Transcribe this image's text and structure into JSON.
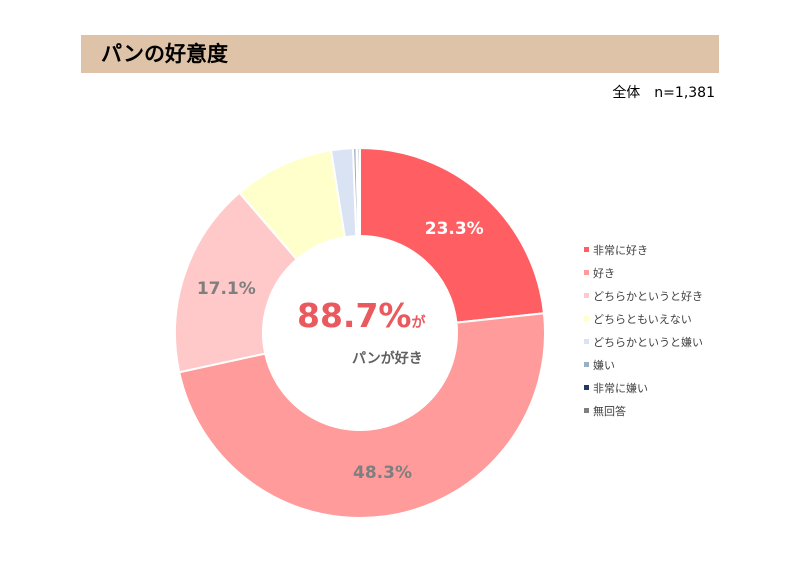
{
  "title": "パンの好意度",
  "sample_size": "全体　n=1,381",
  "center": {
    "big": "88.7%",
    "suffix": "が",
    "sub": "パンが好き"
  },
  "colors": {
    "title_bar": "#dfc3a8",
    "center_text": "#e9595d"
  },
  "chart_data": {
    "type": "pie",
    "donut": true,
    "categories": [
      "非常に好き",
      "好き",
      "どちらかというと好き",
      "どちらともいえない",
      "どちらかというと嫌い",
      "嫌い",
      "非常に嫌い",
      "無回答"
    ],
    "values": [
      23.3,
      48.3,
      17.1,
      8.8,
      1.9,
      0.3,
      0.1,
      0.2
    ],
    "labels": [
      "23.3%",
      "48.3%",
      "17.1%",
      "",
      "",
      "",
      "",
      ""
    ],
    "colors": [
      "#ff5e63",
      "#ff9b9b",
      "#ffc9c9",
      "#ffffcc",
      "#dae3f3",
      "#9ab0c0",
      "#1f3864",
      "#7f7f7f"
    ],
    "label_colors": [
      "#ffffff",
      "#7f7f7f",
      "#7f7f7f",
      "",
      "",
      "",
      "",
      ""
    ],
    "legend_placement": "right"
  }
}
